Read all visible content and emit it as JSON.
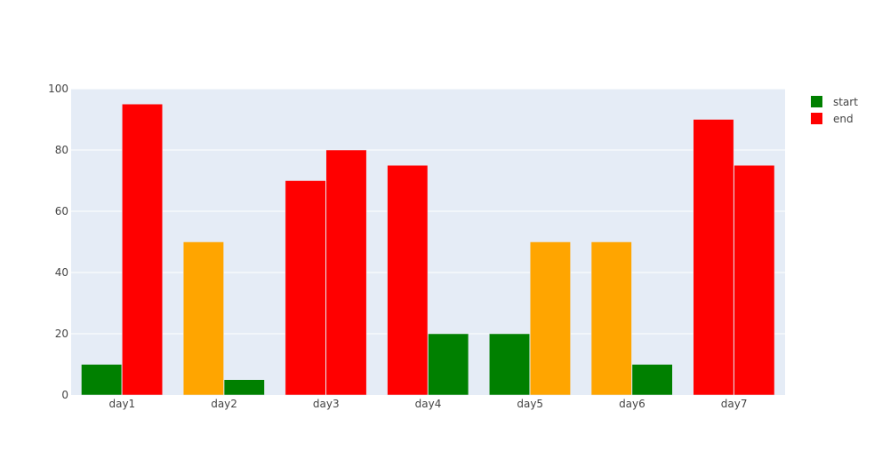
{
  "chart_data": {
    "type": "bar",
    "categories": [
      "day1",
      "day2",
      "day3",
      "day4",
      "day5",
      "day6",
      "day7"
    ],
    "series": [
      {
        "name": "start",
        "values": [
          10,
          50,
          70,
          75,
          20,
          50,
          90
        ]
      },
      {
        "name": "end",
        "values": [
          95,
          5,
          80,
          20,
          50,
          10,
          75
        ]
      }
    ],
    "bar_colors": [
      [
        "#008000",
        "#FFA500",
        "#FF0000",
        "#FF0000",
        "#008000",
        "#FFA500",
        "#FF0000"
      ],
      [
        "#FF0000",
        "#008000",
        "#FF0000",
        "#008000",
        "#FFA500",
        "#008000",
        "#FF0000"
      ]
    ],
    "legend": [
      {
        "label": "start",
        "color": "#008000"
      },
      {
        "label": "end",
        "color": "#FF0000"
      }
    ],
    "y_ticks": [
      0,
      20,
      40,
      60,
      80,
      100
    ],
    "ylim": [
      0,
      100
    ],
    "grid": true,
    "legend_position": "top-right",
    "plot_background": "#E5ECF6",
    "title": "",
    "xlabel": "",
    "ylabel": ""
  }
}
